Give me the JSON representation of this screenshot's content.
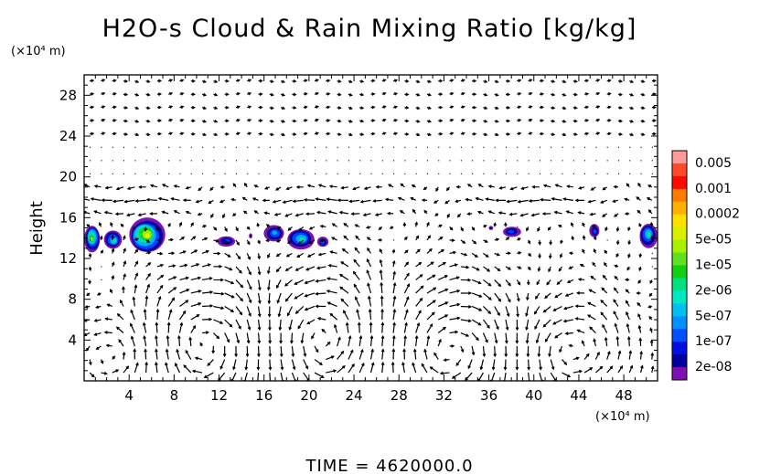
{
  "chart_data": {
    "type": "heatmap",
    "title": "H2O-s Cloud & Rain Mixing Ratio [kg/kg]",
    "ylabel": "Height",
    "y_unit": "(×10⁴ m)",
    "x_unit": "(×10⁴ m)",
    "xlim": [
      0,
      51
    ],
    "ylim": [
      0,
      30
    ],
    "x_ticks": [
      4,
      8,
      12,
      16,
      20,
      24,
      28,
      32,
      36,
      40,
      44,
      48
    ],
    "y_ticks": [
      4,
      8,
      12,
      16,
      20,
      24,
      28
    ],
    "x_minor_step": 1,
    "y_minor_step": 1,
    "time_label": "TIME = 4620000.0",
    "colorbar": {
      "labels": [
        "0.005",
        "0.001",
        "0.0002",
        "5e-05",
        "1e-05",
        "2e-06",
        "5e-07",
        "1e-07",
        "2e-08"
      ],
      "colors_top_to_bottom": [
        "#ff9a9a",
        "#ff4a2a",
        "#ff0a00",
        "#ff7a00",
        "#ffb000",
        "#ffe000",
        "#d8f000",
        "#a8f000",
        "#60e020",
        "#10d010",
        "#00e080",
        "#00e8c0",
        "#00c0f0",
        "#0090ff",
        "#0050ff",
        "#0010e0",
        "#0000a0",
        "#8010b0"
      ]
    },
    "cloud_blobs": [
      {
        "x": 0.7,
        "y": 14.0,
        "w": 1.4,
        "h": 2.6,
        "level": 0.8
      },
      {
        "x": 2.6,
        "y": 13.8,
        "w": 1.6,
        "h": 1.8,
        "level": 0.55
      },
      {
        "x": 5.5,
        "y": 14.3,
        "w": 3.2,
        "h": 3.4,
        "level": 0.9
      },
      {
        "x": 12.7,
        "y": 13.7,
        "w": 1.6,
        "h": 1.0,
        "level": 0.35
      },
      {
        "x": 14.8,
        "y": 14.2,
        "w": 0.3,
        "h": 0.5,
        "level": 0.2
      },
      {
        "x": 16.9,
        "y": 14.5,
        "w": 1.8,
        "h": 1.6,
        "level": 0.45
      },
      {
        "x": 19.3,
        "y": 13.9,
        "w": 2.4,
        "h": 2.0,
        "level": 0.6
      },
      {
        "x": 21.2,
        "y": 13.6,
        "w": 1.0,
        "h": 1.0,
        "level": 0.35
      },
      {
        "x": 36.2,
        "y": 15.0,
        "w": 0.4,
        "h": 0.4,
        "level": 0.15
      },
      {
        "x": 38.0,
        "y": 14.6,
        "w": 1.6,
        "h": 1.0,
        "level": 0.3
      },
      {
        "x": 45.4,
        "y": 14.7,
        "w": 0.9,
        "h": 1.3,
        "level": 0.3
      },
      {
        "x": 50.2,
        "y": 14.3,
        "w": 1.6,
        "h": 2.4,
        "level": 0.55
      }
    ],
    "vortices": [
      {
        "x": 3.5,
        "y": 2.5,
        "r": 2.8,
        "dir": 1
      },
      {
        "x": 11.5,
        "y": 3.5,
        "r": 4.5,
        "dir": -1
      },
      {
        "x": 21.0,
        "y": 4.0,
        "r": 4.5,
        "dir": 1
      },
      {
        "x": 32.5,
        "y": 3.0,
        "r": 4.5,
        "dir": -1
      },
      {
        "x": 43.0,
        "y": 3.0,
        "r": 3.5,
        "dir": 1
      }
    ]
  }
}
